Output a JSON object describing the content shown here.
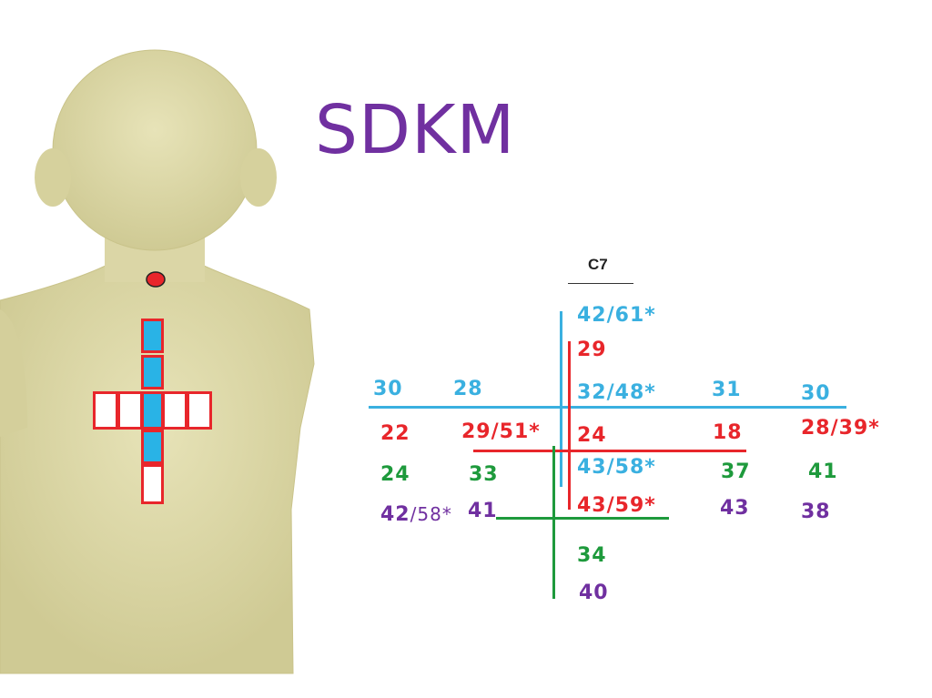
{
  "title": "SDKM",
  "c7_label": "C7",
  "colors": {
    "blue": "#3ab0e0",
    "red": "#e8262b",
    "green": "#1e9a3c",
    "purple": "#7030a0",
    "marker_fill": "#e8262b",
    "vertebra_fill": "#29b3e6"
  },
  "center": {
    "blue_1": "42/61*",
    "red_1": "29",
    "blue_2": "32/48*",
    "red_2": "24",
    "blue_3": "43/58*",
    "red_3": "43/59*",
    "green": "34",
    "purple": "40"
  },
  "left_far": {
    "blue": "30",
    "red": "22",
    "green": "24",
    "purple": "42",
    "purple_suffix": "/58*"
  },
  "left_near": {
    "blue": "28",
    "red": "29/51*",
    "green": "33",
    "purple": "41"
  },
  "right_near": {
    "blue": "31",
    "red": "18",
    "green": "37",
    "purple": "43"
  },
  "right_far": {
    "blue": "30",
    "red": "28/39*",
    "green": "41",
    "purple": "38"
  }
}
